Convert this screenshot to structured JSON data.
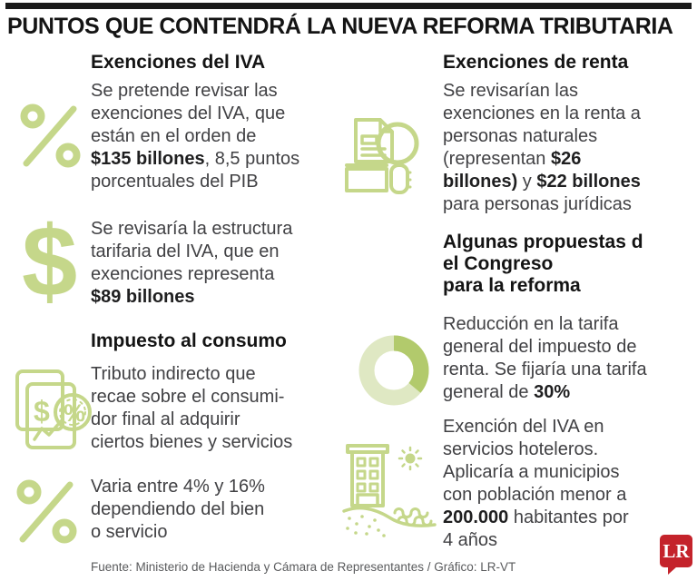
{
  "title": "PUNTOS QUE CONTENDRÁ LA NUEVA REFORMA TRIBUTARIA",
  "colors": {
    "icon_green": "#c5d78a",
    "donut_light": "#dfe8c3",
    "donut_dark": "#b2ca6c",
    "logo_red": "#c4232b",
    "body_text": "#414144",
    "heading_text": "#141414"
  },
  "glyphs": {
    "dollar": "$",
    "invoice_dollar": "$",
    "invoice_percent": "%"
  },
  "sections": {
    "exenciones_iva": {
      "heading": "Exenciones del IVA"
    },
    "impuesto_consumo": {
      "heading": "Impuesto al consumo"
    },
    "exenciones_renta": {
      "heading": "Exenciones de renta"
    },
    "propuestas_congreso": {
      "heading": "Algunas propuestas d\nel Congreso\npara la reforma"
    }
  },
  "items": {
    "iva_monto": {
      "icon": "percent-icon",
      "segments": [
        {
          "t": "Se pretende revisar las\nexenciones del IVA, que\nestán en el orden de\n",
          "b": false
        },
        {
          "t": "$135 billones",
          "b": true
        },
        {
          "t": ", 8,5 puntos\nporcentuales del PIB",
          "b": false
        }
      ]
    },
    "iva_estructura": {
      "icon": "dollar-icon",
      "segments": [
        {
          "t": "Se revisaría la estructura\ntarifaria del IVA, que en\nexenciones representa\n",
          "b": false
        },
        {
          "t": "$89 billones",
          "b": true
        }
      ]
    },
    "consumo_definicion": {
      "icon": "invoice-icon",
      "segments": [
        {
          "t": "Tributo indirecto que\nrecae sobre el consumi-\ndor final al adquirir\nciertos bienes y servicios",
          "b": false
        }
      ]
    },
    "consumo_rango": {
      "icon": "percent-icon",
      "segments": [
        {
          "t": "Varia entre 4% y 16%\ndependiendo del bien\no servicio",
          "b": false
        }
      ]
    },
    "renta_revision": {
      "icon": "document-search-icon",
      "segments": [
        {
          "t": "Se revisarían las\nexenciones en la renta a\npersonas naturales\n(representan ",
          "b": false
        },
        {
          "t": "$26\nbillones)",
          "b": true
        },
        {
          "t": " y ",
          "b": false
        },
        {
          "t": "$22 billones",
          "b": true
        },
        {
          "t": "\npara personas jurídicas",
          "b": false
        }
      ]
    },
    "tarifa_renta": {
      "icon": "donut-chart-icon",
      "segments": [
        {
          "t": "Reducción en la tarifa\ngeneral del impuesto de\nrenta. Se fijaría una tarifa\ngeneral de ",
          "b": false
        },
        {
          "t": "30%",
          "b": true
        }
      ]
    },
    "iva_hoteles": {
      "icon": "hotel-icon",
      "segments": [
        {
          "t": "Exención del IVA en\nservicios hoteleros.\nAplicaría a municipios\ncon población menor a\n",
          "b": false
        },
        {
          "t": "200.000",
          "b": true
        },
        {
          "t": " habitantes por\n4 años",
          "b": false
        }
      ]
    }
  },
  "footer": {
    "source": "Fuente: Ministerio de Hacienda y Cámara de Representantes / Gráfico: LR-VT"
  },
  "logo": {
    "text": "LR"
  }
}
